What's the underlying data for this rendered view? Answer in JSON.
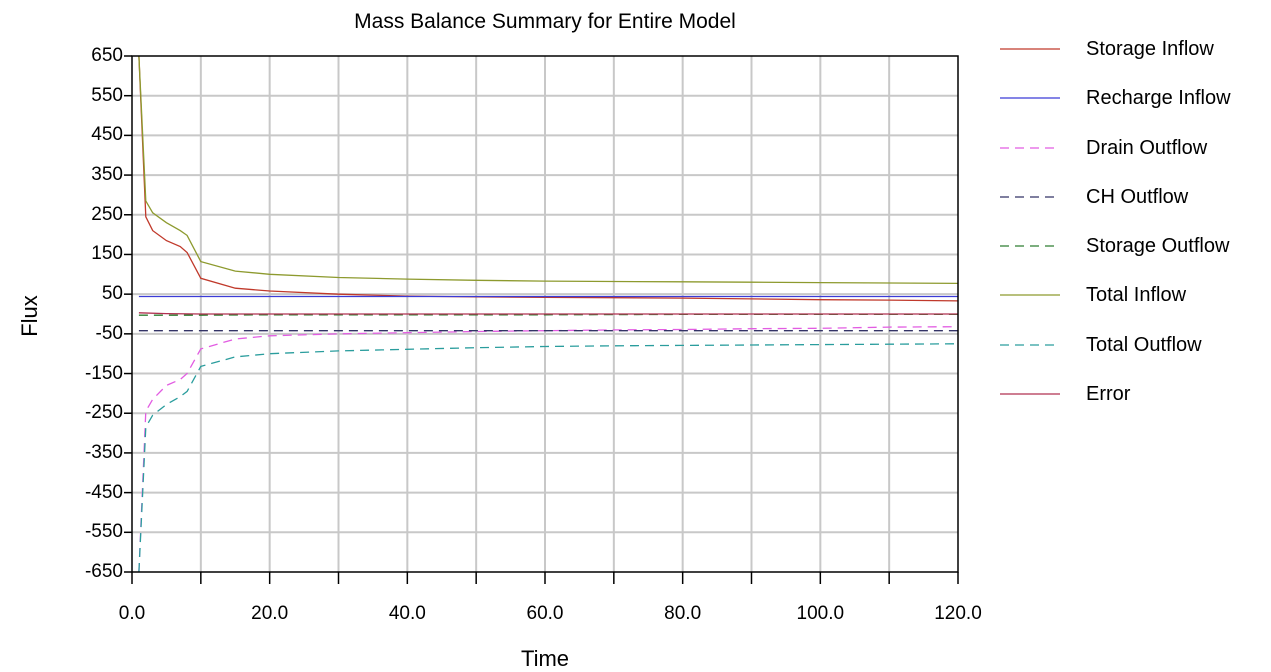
{
  "chart_data": {
    "type": "line",
    "title": "Mass Balance Summary for Entire Model",
    "xlabel": "Time",
    "ylabel": "Flux",
    "xlim": [
      0,
      120
    ],
    "ylim": [
      -650,
      650
    ],
    "xticks": [
      "0.0",
      "20.0",
      "40.0",
      "60.0",
      "80.0",
      "100.0",
      "120.0"
    ],
    "yticks": [
      "650",
      "550",
      "450",
      "350",
      "250",
      "150",
      "50",
      "-50",
      "-150",
      "-250",
      "-350",
      "-450",
      "-550",
      "-650"
    ],
    "grid": true,
    "legend_position": "right",
    "series": [
      {
        "name": "Storage Inflow",
        "color": "#c0392b",
        "dash": "solid",
        "x": [
          1,
          2,
          3,
          5,
          7,
          8,
          10,
          15,
          20,
          30,
          40,
          50,
          60,
          70,
          80,
          90,
          100,
          110,
          120
        ],
        "y": [
          650,
          245,
          210,
          185,
          170,
          155,
          90,
          65,
          58,
          50,
          45,
          43,
          42,
          41,
          40,
          38,
          36,
          35,
          33
        ]
      },
      {
        "name": "Recharge Inflow",
        "color": "#3b3bd6",
        "dash": "solid",
        "x": [
          1,
          10,
          20,
          40,
          60,
          80,
          100,
          120
        ],
        "y": [
          44,
          44,
          44,
          44,
          44,
          44,
          44,
          44
        ]
      },
      {
        "name": "Drain Outflow",
        "color": "#e25ce2",
        "dash": "dashed",
        "x": [
          1,
          2,
          3,
          5,
          7,
          8,
          10,
          15,
          20,
          30,
          40,
          50,
          60,
          70,
          80,
          90,
          100,
          110,
          120
        ],
        "y": [
          -650,
          -245,
          -215,
          -180,
          -165,
          -150,
          -88,
          -63,
          -55,
          -50,
          -47,
          -44,
          -42,
          -40,
          -39,
          -37,
          -36,
          -33,
          -32
        ]
      },
      {
        "name": "CH Outflow",
        "color": "#333366",
        "dash": "dashed",
        "x": [
          1,
          10,
          20,
          40,
          60,
          80,
          100,
          120
        ],
        "y": [
          -42,
          -42,
          -42,
          -42,
          -42,
          -42,
          -42,
          -42
        ]
      },
      {
        "name": "Storage Outflow",
        "color": "#2e7d32",
        "dash": "dashed",
        "x": [
          1,
          10,
          20,
          40,
          60,
          80,
          100,
          120
        ],
        "y": [
          -3,
          -3,
          -2,
          -2,
          -2,
          -1,
          -1,
          -1
        ]
      },
      {
        "name": "Total Inflow",
        "color": "#8d9a2e",
        "dash": "solid",
        "x": [
          1,
          2,
          3,
          5,
          7,
          8,
          10,
          15,
          20,
          30,
          40,
          50,
          60,
          70,
          80,
          90,
          100,
          110,
          120
        ],
        "y": [
          650,
          285,
          255,
          230,
          210,
          198,
          132,
          108,
          100,
          92,
          88,
          85,
          83,
          82,
          81,
          80,
          79,
          78,
          77
        ]
      },
      {
        "name": "Total Outflow",
        "color": "#2a9d9d",
        "dash": "dashed",
        "x": [
          1,
          2,
          3,
          5,
          7,
          8,
          10,
          15,
          20,
          30,
          40,
          50,
          60,
          70,
          80,
          90,
          100,
          110,
          120
        ],
        "y": [
          -650,
          -285,
          -255,
          -228,
          -208,
          -195,
          -132,
          -108,
          -100,
          -93,
          -89,
          -85,
          -82,
          -80,
          -79,
          -78,
          -77,
          -76,
          -75
        ]
      },
      {
        "name": "Error",
        "color": "#b03050",
        "dash": "solid",
        "x": [
          1,
          5,
          10,
          20,
          40,
          60,
          80,
          100,
          120
        ],
        "y": [
          3,
          1,
          0,
          0,
          0,
          0,
          0,
          0,
          0
        ]
      }
    ]
  }
}
